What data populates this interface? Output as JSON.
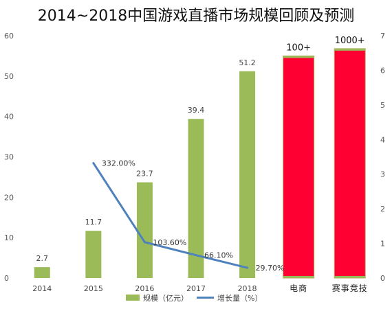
{
  "chart_data": {
    "type": "bar",
    "title": "2014~2018中国游戏直播市场规模回顾及预测",
    "categories": [
      "2014",
      "2015",
      "2016",
      "2017",
      "2018",
      "电商",
      "赛事竞技"
    ],
    "series": [
      {
        "name": "规模（亿元）",
        "type": "bar",
        "axis": "left",
        "color": "#9bbb59",
        "values": [
          2.7,
          11.7,
          23.7,
          39.4,
          51.2,
          null,
          null
        ],
        "labels": [
          "2.7",
          "11.7",
          "23.7",
          "39.4",
          "51.2",
          null,
          null
        ]
      },
      {
        "name": "增长量（%）",
        "type": "line",
        "axis": "right",
        "color": "#4f81bd",
        "values": [
          null,
          3.32,
          1.036,
          0.661,
          0.297,
          null,
          null
        ],
        "labels": [
          null,
          "332.00%",
          "103.60%",
          "66.10%",
          "29.70%",
          null,
          null
        ]
      }
    ],
    "extra_bars": [
      {
        "category": "电商",
        "label": "100+",
        "value": 55,
        "color": "#ff0033"
      },
      {
        "category": "赛事竞技",
        "label": "1000+",
        "value": 56.8,
        "color": "#ff0033"
      }
    ],
    "y_left": {
      "min": 0,
      "max": 60,
      "ticks": [
        0,
        10,
        20,
        30,
        40,
        50,
        60
      ]
    },
    "y_right": {
      "min": 0,
      "max": 7,
      "ticks": [
        0,
        1,
        2,
        3,
        4,
        5,
        6,
        7
      ]
    },
    "legend": {
      "position": "bottom",
      "items": [
        "规模（亿元）",
        "增长量（%）"
      ]
    }
  }
}
